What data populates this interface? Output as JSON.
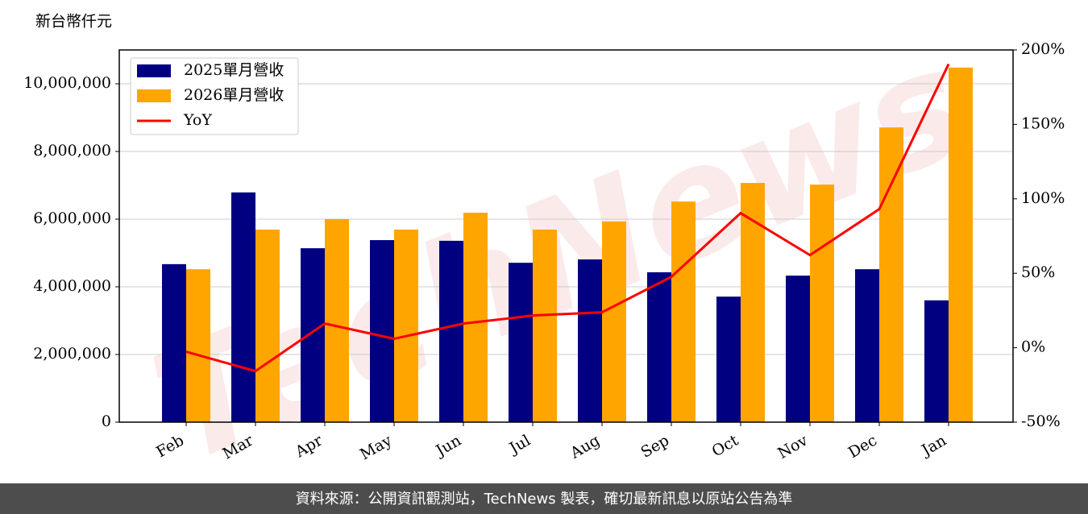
{
  "chart_data": {
    "type": "bar-line",
    "unit_label": "新台幣仟元",
    "footer": "資料來源：公開資訊觀測站，TechNews 製表，確切最新訊息以原站公告為準",
    "watermark": "TechNews",
    "categories": [
      "Feb",
      "Mar",
      "Apr",
      "May",
      "Jun",
      "Jul",
      "Aug",
      "Sep",
      "Oct",
      "Nov",
      "Dec",
      "Jan"
    ],
    "series": [
      {
        "name": "2025單月營收",
        "type": "bar",
        "color": "#000080",
        "values": [
          4670000,
          6790000,
          5140000,
          5380000,
          5360000,
          4710000,
          4810000,
          4430000,
          3710000,
          4330000,
          4520000,
          3600000
        ]
      },
      {
        "name": "2026單月營收",
        "type": "bar",
        "color": "#ffa500",
        "values": [
          4520000,
          5690000,
          6000000,
          5690000,
          6190000,
          5690000,
          5930000,
          6520000,
          7070000,
          7020000,
          8710000,
          10480000
        ]
      },
      {
        "name": "YoY",
        "type": "line",
        "axis": "y2",
        "color": "#ff0000",
        "values": [
          -2.7,
          -15.7,
          16.2,
          6.0,
          16.2,
          21.6,
          23.8,
          47.6,
          90.4,
          62.2,
          93.1,
          190.5
        ]
      }
    ],
    "ylim": [
      0,
      11000000
    ],
    "yticks": [
      0,
      {
        "value": 2000000,
        "label": "2,000,000"
      },
      {
        "value": 4000000,
        "label": "4,000,000"
      },
      {
        "value": 6000000,
        "label": "6,000,000"
      },
      {
        "value": 8000000,
        "label": "8,000,000"
      },
      {
        "value": 10000000,
        "label": "10,000,000"
      }
    ],
    "y2lim": [
      -50,
      200
    ],
    "y2ticks": [
      {
        "value": -50,
        "label": "-50%"
      },
      {
        "value": 0,
        "label": "0%"
      },
      {
        "value": 50,
        "label": "50%"
      },
      {
        "value": 100,
        "label": "100%"
      },
      {
        "value": 150,
        "label": "150%"
      },
      {
        "value": 200,
        "label": "200%"
      }
    ],
    "grid": true,
    "legend": "upper left"
  }
}
